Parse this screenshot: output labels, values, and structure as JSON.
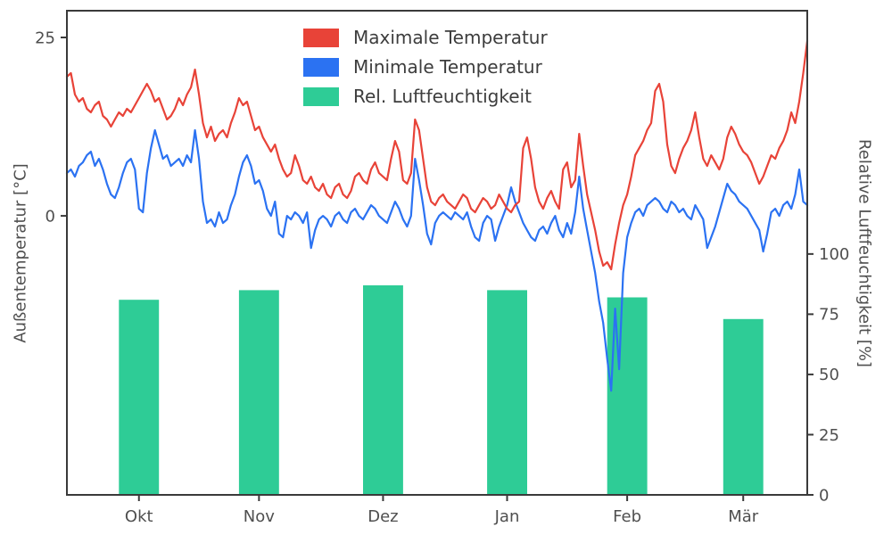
{
  "chart_data": {
    "type": "line+bar",
    "title": "",
    "n_days": 186,
    "month_ticks": [
      {
        "label": "Okt",
        "day": 18
      },
      {
        "label": "Nov",
        "day": 48
      },
      {
        "label": "Dez",
        "day": 79
      },
      {
        "label": "Jan",
        "day": 110
      },
      {
        "label": "Feb",
        "day": 140
      },
      {
        "label": "Mär",
        "day": 169
      }
    ],
    "left_axis": {
      "label": "Außentemperatur [°C]",
      "ticks": [
        0,
        25
      ],
      "range": [
        -39.1,
        28.75
      ]
    },
    "right_axis": {
      "label": "Relative Luftfeuchtigkeit [%]",
      "ticks": [
        0,
        25,
        50,
        75,
        100
      ],
      "range": [
        0,
        201
      ]
    },
    "legend_position": "upper center",
    "series": [
      {
        "name": "Maximale Temperatur",
        "type": "line",
        "axis": "left",
        "color": "#e84338",
        "values": [
          19.5,
          20,
          17,
          16,
          16.5,
          15,
          14.5,
          15.5,
          16,
          14,
          13.5,
          12.5,
          13.5,
          14.5,
          14,
          15,
          14.5,
          15.5,
          16.5,
          17.5,
          18.5,
          17.5,
          16,
          16.5,
          15,
          13.5,
          14,
          15,
          16.5,
          15.5,
          17,
          18,
          20.5,
          17,
          13,
          11,
          12.5,
          10.5,
          11.5,
          12,
          11,
          13,
          14.5,
          16.5,
          15.5,
          16,
          14,
          12,
          12.5,
          11,
          10,
          9,
          10,
          8,
          6.5,
          5.5,
          6,
          8.5,
          7,
          5,
          4.5,
          5.5,
          4,
          3.5,
          4.5,
          3,
          2.5,
          4,
          4.5,
          3,
          2.5,
          3.5,
          5.5,
          6,
          5,
          4.5,
          6.5,
          7.5,
          6,
          5.5,
          5,
          8,
          10.5,
          9,
          5,
          4.5,
          6,
          13.5,
          12,
          8,
          4,
          2,
          1.5,
          2.5,
          3,
          2,
          1.5,
          1,
          2,
          3,
          2.5,
          1,
          0.5,
          1.5,
          2.5,
          2,
          1,
          1.5,
          3,
          2,
          1,
          0.5,
          1.5,
          2,
          9.5,
          11,
          8,
          4,
          2,
          1,
          2.5,
          3.5,
          2,
          1,
          6.5,
          7.5,
          4,
          5,
          11.5,
          7,
          3,
          0.5,
          -2,
          -5,
          -7,
          -6.5,
          -7.5,
          -4,
          -1,
          1.5,
          3,
          5.5,
          8.5,
          9.5,
          10.5,
          12,
          13,
          17.5,
          18.5,
          16,
          10,
          7,
          6,
          8,
          9.5,
          10.5,
          12,
          14.5,
          11,
          8,
          7,
          8.5,
          7.5,
          6.5,
          8,
          11,
          12.5,
          11.5,
          10,
          9,
          8.5,
          7.5,
          6,
          4.5,
          5.5,
          7,
          8.5,
          8,
          9.5,
          10.5,
          12,
          14.5,
          13,
          16,
          20,
          24.5
        ]
      },
      {
        "name": "Minimale Temperatur",
        "type": "line",
        "axis": "left",
        "color": "#2b72f2",
        "values": [
          6,
          6.5,
          5.5,
          7,
          7.5,
          8.5,
          9,
          7,
          8,
          6.5,
          4.5,
          3,
          2.5,
          4,
          6,
          7.5,
          8,
          6.5,
          1,
          0.5,
          6,
          9.5,
          12,
          10,
          8,
          8.5,
          7,
          7.5,
          8,
          7,
          8.5,
          7.5,
          12,
          8,
          2,
          -1,
          -0.5,
          -1.5,
          0.5,
          -1,
          -0.5,
          1.5,
          3,
          5.5,
          7.5,
          8.5,
          7,
          4.5,
          5,
          3.5,
          1,
          0,
          2,
          -2.5,
          -3,
          0,
          -0.5,
          0.5,
          0,
          -1,
          0.5,
          -4.5,
          -2,
          -0.5,
          0,
          -0.5,
          -1.5,
          0,
          0.5,
          -0.5,
          -1,
          0.5,
          1,
          0,
          -0.5,
          0.5,
          1.5,
          1,
          0,
          -0.5,
          -1,
          0.5,
          2,
          1,
          -0.5,
          -1.5,
          0,
          8,
          5,
          1.5,
          -2.5,
          -4,
          -1,
          0,
          0.5,
          0,
          -0.5,
          0.5,
          0,
          -0.5,
          0.5,
          -1.5,
          -3,
          -3.5,
          -1,
          0,
          -0.5,
          -3.5,
          -1.5,
          0,
          1.5,
          4,
          2,
          0.5,
          -1,
          -2,
          -3,
          -3.5,
          -2,
          -1.5,
          -2.5,
          -1,
          0,
          -2,
          -3,
          -1,
          -2.5,
          0.5,
          5.5,
          1,
          -2,
          -5,
          -8,
          -12,
          -15,
          -20,
          -24.5,
          -13,
          -21.5,
          -8,
          -3,
          -1,
          0.5,
          1,
          0,
          1.5,
          2,
          2.5,
          2,
          1,
          0.5,
          2,
          1.5,
          0.5,
          1,
          0,
          -0.5,
          1.5,
          0.5,
          -0.5,
          -4.5,
          -3,
          -1.5,
          0.5,
          2.5,
          4.5,
          3.5,
          3,
          2,
          1.5,
          1,
          0,
          -1,
          -2,
          -5,
          -2.5,
          0.5,
          1,
          0,
          1.5,
          2,
          1,
          3,
          6.5,
          2,
          1.5
        ]
      },
      {
        "name": "Rel. Luftfeuchtigkeit",
        "type": "bar",
        "axis": "right",
        "color": "#2ecc96",
        "bar_width_days": 10,
        "bars": [
          {
            "month": "Okt",
            "day": 18,
            "value": 81
          },
          {
            "month": "Nov",
            "day": 48,
            "value": 85
          },
          {
            "month": "Dez",
            "day": 79,
            "value": 87
          },
          {
            "month": "Jan",
            "day": 110,
            "value": 85
          },
          {
            "month": "Feb",
            "day": 140,
            "value": 82
          },
          {
            "month": "Mär",
            "day": 169,
            "value": 73
          }
        ]
      }
    ]
  }
}
